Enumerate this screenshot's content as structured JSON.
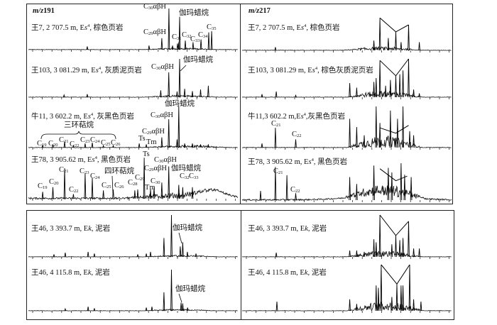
{
  "chart_data": {
    "type": "line",
    "titles": [
      {
        "it": "m/z",
        "num": "191"
      },
      {
        "it": "m/z",
        "num": "217"
      }
    ],
    "panels": [
      {
        "column": "m/z191",
        "label": {
          "pre": "王7, 2 707.5 m, E",
          "it": "s",
          "sup": "4",
          "post": ", 棕色页岩"
        },
        "noise": 1,
        "cluster": [
          55,
          90,
          3
        ],
        "peaks": [
          [
            28.1,
            8
          ],
          [
            57.6,
            10
          ],
          [
            63.7,
            28
          ],
          [
            67.1,
            100
          ],
          [
            68.8,
            10
          ],
          [
            71.2,
            15
          ],
          [
            71.8,
            18
          ],
          [
            72.2,
            80
          ],
          [
            74.9,
            22
          ],
          [
            78.6,
            18
          ],
          [
            82.4,
            25
          ],
          [
            86.1,
            42
          ],
          [
            87.5,
            45
          ]
        ],
        "annotations": [
          {
            "base": "C",
            "sub": "30",
            "suffix": "αβH"
          },
          {
            "base": "伽玛蜡烷"
          },
          {
            "base": "C",
            "sub": "29",
            "suffix": "αβH"
          },
          {
            "base": "C",
            "sub": "31"
          },
          {
            "base": "C",
            "sub": "32"
          },
          {
            "base": "C",
            "sub": "33"
          },
          {
            "base": "C",
            "sub": "34"
          },
          {
            "base": "C",
            "sub": "35"
          }
        ]
      },
      {
        "column": "m/z191",
        "label": {
          "pre": "王103, 3 081.29 m, E",
          "it": "s",
          "sup": "4",
          "post": ", 灰质泥页岩"
        },
        "noise": 1,
        "cluster": [
          55,
          90,
          4
        ],
        "peaks": [
          [
            17,
            6
          ],
          [
            28.1,
            8
          ],
          [
            63.2,
            18
          ],
          [
            67,
            65
          ],
          [
            71,
            15
          ],
          [
            72.2,
            100
          ],
          [
            74.6,
            22
          ],
          [
            78.3,
            16
          ],
          [
            82.2,
            20
          ],
          [
            85.9,
            30
          ]
        ],
        "annotations": [
          {
            "base": "C",
            "sub": "30",
            "suffix": "αβH"
          },
          {
            "base": "伽玛蜡烷"
          }
        ]
      },
      {
        "column": "m/z191",
        "label": {
          "pre": "牛11, 3 602.2 m, E",
          "it": "s",
          "sup": "4",
          "post": ", 灰黑色页岩"
        },
        "noise": 1.2,
        "cluster": [
          55,
          95,
          4
        ],
        "peaks": [
          [
            6.8,
            6
          ],
          [
            11.7,
            8
          ],
          [
            17.3,
            15
          ],
          [
            21.5,
            5
          ],
          [
            27.1,
            10
          ],
          [
            30.5,
            12
          ],
          [
            35.8,
            5
          ],
          [
            40.5,
            5
          ],
          [
            52.9,
            10
          ],
          [
            56.3,
            8
          ],
          [
            63.7,
            25
          ],
          [
            67,
            69
          ],
          [
            71,
            20
          ],
          [
            71.8,
            100
          ],
          [
            74.6,
            10
          ],
          [
            78.3,
            10
          ],
          [
            82.2,
            8
          ],
          [
            85.9,
            8
          ]
        ],
        "annotations": [
          {
            "base": "伽玛蜡烷"
          },
          {
            "base": "C",
            "sub": "30",
            "suffix": "αβH"
          },
          {
            "base": "C",
            "sub": "29",
            "suffix": "αβH"
          },
          {
            "base": "Ts"
          },
          {
            "base": "Tm"
          },
          {
            "base": "三环萜烷"
          },
          {
            "base": "C",
            "sub": "19"
          },
          {
            "base": "C",
            "sub": "20"
          },
          {
            "base": "C",
            "sub": "21"
          },
          {
            "base": "C",
            "sub": "22"
          },
          {
            "base": "C",
            "sub": "23"
          },
          {
            "base": "C",
            "sub": "24"
          },
          {
            "base": "C",
            "sub": "25"
          },
          {
            "base": "C",
            "sub": "26"
          }
        ]
      },
      {
        "column": "m/z191",
        "label": {
          "pre": "王78, 3 905.62 m, E",
          "it": "s",
          "sup": "4",
          "post": ", 黑色页岩"
        },
        "noise": 4,
        "cluster": [
          45,
          95,
          8
        ],
        "hump": [
          88,
          9,
          16
        ],
        "peaks": [
          [
            6.8,
            15
          ],
          [
            11.7,
            25
          ],
          [
            17.3,
            66
          ],
          [
            21.5,
            10
          ],
          [
            27.1,
            55
          ],
          [
            30.5,
            45
          ],
          [
            35.8,
            18
          ],
          [
            40.5,
            20
          ],
          [
            50.8,
            18
          ],
          [
            52.2,
            20
          ],
          [
            55.3,
            89
          ],
          [
            58.3,
            20
          ],
          [
            60,
            25
          ],
          [
            63.7,
            35
          ],
          [
            67,
            70
          ],
          [
            71.8,
            30
          ],
          [
            73.7,
            25
          ],
          [
            78.3,
            25
          ]
        ],
        "annotations": [
          {
            "base": "Ts"
          },
          {
            "base": "C",
            "sub": "30",
            "suffix": "αβH"
          },
          {
            "base": "C",
            "sub": "29",
            "suffix": "αβH"
          },
          {
            "base": "伽玛蜡烷"
          },
          {
            "base": "四环萜烷"
          },
          {
            "base": "C",
            "sub": "19"
          },
          {
            "base": "C",
            "sub": "20"
          },
          {
            "base": "C",
            "sub": "21"
          },
          {
            "base": "C",
            "sub": "22"
          },
          {
            "base": "C",
            "sub": "23"
          },
          {
            "base": "C",
            "sub": "24"
          },
          {
            "base": "C",
            "sub": "25"
          },
          {
            "base": "C",
            "sub": "26"
          },
          {
            "base": "C",
            "sub": "28"
          },
          {
            "base": "C",
            "sub": "29"
          },
          {
            "base": "Tm"
          },
          {
            "base": "C",
            "sub": "30"
          },
          {
            "base": "C",
            "sub": "32"
          },
          {
            "base": "C",
            "sub": "33"
          }
        ]
      },
      {
        "column": "m/z217",
        "label": {
          "pre": "王7, 2 707.5 m, E",
          "it": "s",
          "sup": "4",
          "post": ", 棕色页岩"
        },
        "noise": 1,
        "cluster": [
          48,
          86,
          6
        ],
        "peaks": [
          [
            15.9,
            8
          ],
          [
            62.9,
            24
          ],
          [
            65.8,
            79
          ],
          [
            69.8,
            30
          ],
          [
            73.4,
            45
          ],
          [
            75.9,
            20
          ],
          [
            79.5,
            62
          ],
          [
            84.6,
            20
          ]
        ],
        "sterane_marker": [
          [
            65.8,
            79
          ],
          [
            73.4,
            45
          ],
          [
            79.5,
            62
          ]
        ],
        "annotations": []
      },
      {
        "column": "m/z217",
        "label": {
          "pre": "王103, 3 081.29 m, E",
          "it": "s",
          "sup": "4",
          "post": ", 棕色灰质泥页岩"
        },
        "noise": 1,
        "cluster": [
          50,
          86,
          12
        ],
        "peaks": [
          [
            9.5,
            8
          ],
          [
            16.3,
            15
          ],
          [
            25.6,
            5
          ],
          [
            51.4,
            37
          ],
          [
            54.7,
            25
          ],
          [
            62.9,
            40
          ],
          [
            64,
            50
          ],
          [
            65.8,
            96
          ],
          [
            68.5,
            30
          ],
          [
            70.8,
            45
          ],
          [
            73.4,
            56
          ],
          [
            75.3,
            60
          ],
          [
            76.8,
            70
          ],
          [
            79.5,
            100
          ],
          [
            81.9,
            20
          ],
          [
            84.6,
            10
          ]
        ],
        "sterane_marker": [
          [
            65.8,
            96
          ],
          [
            73.4,
            56
          ],
          [
            79.5,
            100
          ]
        ],
        "annotations": []
      },
      {
        "column": "m/z217",
        "label": {
          "pre": "牛11,3 602.2 m,E",
          "it": "s",
          "sup": "4",
          "post": ",灰黑色页岩"
        },
        "noise": 1.2,
        "cluster": [
          50,
          86,
          20
        ],
        "peaks": [
          [
            9.5,
            10
          ],
          [
            15.9,
            48
          ],
          [
            25.6,
            20
          ],
          [
            51.4,
            70
          ],
          [
            54.7,
            50
          ],
          [
            58.3,
            30
          ],
          [
            64,
            100
          ],
          [
            65.8,
            60
          ],
          [
            70.8,
            90
          ],
          [
            74.2,
            70
          ],
          [
            76.8,
            100
          ],
          [
            80,
            40
          ],
          [
            81.9,
            30
          ]
        ],
        "sterane_marker": [
          [
            65.8,
            48
          ],
          [
            73.4,
            35
          ],
          [
            79.5,
            54
          ]
        ],
        "annotations": [
          {
            "base": "C",
            "sub": "21"
          },
          {
            "base": "C",
            "sub": "22"
          }
        ]
      },
      {
        "column": "m/z217",
        "label": {
          "pre": "王78, 3 905.62 m, E",
          "it": "s",
          "sup": "4",
          "post": ", 黑色页岩"
        },
        "noise": 3,
        "cluster": [
          48,
          88,
          18
        ],
        "hump": [
          65,
          20,
          8
        ],
        "peaks": [
          [
            8.8,
            20
          ],
          [
            15.9,
            72
          ],
          [
            21.4,
            54
          ],
          [
            25.6,
            15
          ],
          [
            51.4,
            50
          ],
          [
            54.7,
            35
          ],
          [
            62.9,
            75
          ],
          [
            69.8,
            70
          ],
          [
            71.5,
            60
          ],
          [
            75.9,
            80
          ],
          [
            77.6,
            55
          ],
          [
            80.7,
            50
          ]
        ],
        "sterane_marker": [
          [
            65.8,
            68
          ],
          [
            73.4,
            42
          ],
          [
            78.8,
            52
          ]
        ],
        "annotations": [
          {
            "base": "C",
            "sub": "21"
          },
          {
            "base": "C",
            "sub": "22"
          }
        ]
      },
      {
        "column": "m/z191",
        "label": {
          "pre": "王46, 3 393.7 m, E",
          "it": "k",
          "sup": "",
          "post": ", 泥岩"
        },
        "noise": 0.8,
        "cluster": [
          55,
          90,
          3
        ],
        "peaks": [
          [
            12.2,
            6
          ],
          [
            17.6,
            10
          ],
          [
            28.5,
            12
          ],
          [
            31.5,
            8
          ],
          [
            52.2,
            6
          ],
          [
            56.3,
            8
          ],
          [
            58.3,
            12
          ],
          [
            64.7,
            45
          ],
          [
            68.3,
            100
          ],
          [
            72.5,
            25
          ],
          [
            73.7,
            35
          ],
          [
            75.9,
            12
          ],
          [
            80,
            8
          ]
        ],
        "annotations": [
          {
            "base": "伽玛蜡烷"
          }
        ]
      },
      {
        "column": "m/z191",
        "label": {
          "pre": "王46, 4 115.8 m, E",
          "it": "k",
          "sup": "",
          "post": ", 泥岩"
        },
        "noise": 0.8,
        "cluster": [
          55,
          88,
          3
        ],
        "peaks": [
          [
            17.6,
            5
          ],
          [
            28.5,
            10
          ],
          [
            31.5,
            6
          ],
          [
            56.3,
            8
          ],
          [
            59,
            10
          ],
          [
            64.7,
            45
          ],
          [
            68.3,
            100
          ],
          [
            72.9,
            20
          ],
          [
            73.7,
            18
          ],
          [
            76,
            8
          ]
        ],
        "annotations": [
          {
            "base": "伽玛蜡烷"
          }
        ]
      },
      {
        "column": "m/z217",
        "label": {
          "pre": "王46, 3 393.7 m, E",
          "it": "k",
          "sup": "",
          "post": ", 泥岩"
        },
        "noise": 0.8,
        "cluster": [
          50,
          86,
          10
        ],
        "peaks": [
          [
            16.3,
            10
          ],
          [
            51.4,
            15
          ],
          [
            54.7,
            15
          ],
          [
            58.3,
            12
          ],
          [
            62.9,
            42
          ],
          [
            64,
            35
          ],
          [
            65.8,
            100
          ],
          [
            71.5,
            30
          ],
          [
            73.4,
            51
          ],
          [
            75.3,
            40
          ],
          [
            76.8,
            45
          ],
          [
            79.5,
            85
          ],
          [
            81.9,
            20
          ],
          [
            84.6,
            20
          ]
        ],
        "sterane_marker": [
          [
            65.8,
            100
          ],
          [
            73.4,
            51
          ],
          [
            79.5,
            85
          ]
        ],
        "annotations": []
      },
      {
        "column": "m/z217",
        "label": {
          "pre": "王46, 4 115.8 m, E",
          "it": "k",
          "sup": "",
          "post": ", 泥岩"
        },
        "noise": 0.8,
        "cluster": [
          50,
          87,
          14
        ],
        "peaks": [
          [
            16.6,
            20
          ],
          [
            51.4,
            25
          ],
          [
            54.7,
            15
          ],
          [
            64,
            55
          ],
          [
            65.1,
            50
          ],
          [
            66.4,
            100
          ],
          [
            71.5,
            30
          ],
          [
            73.9,
            58
          ],
          [
            75.9,
            55
          ],
          [
            76.8,
            55
          ],
          [
            80,
            100
          ],
          [
            81.9,
            25
          ],
          [
            85.4,
            20
          ]
        ],
        "sterane_marker": [
          [
            66.4,
            100
          ],
          [
            73.9,
            58
          ],
          [
            80,
            100
          ]
        ],
        "annotations": []
      }
    ]
  }
}
